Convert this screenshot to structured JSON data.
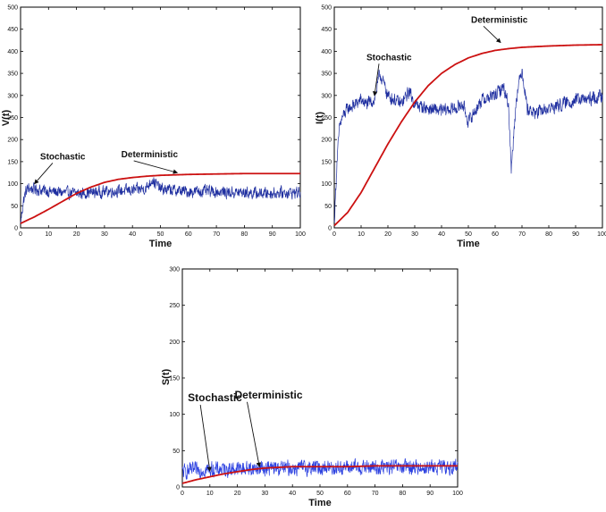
{
  "chart_data": [
    {
      "type": "line",
      "xlabel": "Time",
      "ylabel": "V(t)",
      "xlim": [
        0,
        100
      ],
      "ylim": [
        0,
        500
      ],
      "xticks": [
        0,
        10,
        20,
        30,
        40,
        50,
        60,
        70,
        80,
        90,
        100
      ],
      "yticks": [
        0,
        50,
        100,
        150,
        200,
        250,
        300,
        350,
        400,
        450,
        500
      ],
      "grid": false,
      "series": [
        {
          "name": "Stochastic",
          "color": "#1f2fa0",
          "style": "noisy",
          "x": [
            0,
            1,
            2,
            3,
            5,
            8,
            10,
            15,
            20,
            25,
            30,
            35,
            40,
            45,
            47,
            50,
            55,
            60,
            65,
            70,
            75,
            80,
            85,
            90,
            95,
            100
          ],
          "y": [
            10,
            60,
            85,
            90,
            88,
            85,
            83,
            80,
            78,
            80,
            82,
            84,
            85,
            90,
            110,
            88,
            85,
            82,
            83,
            82,
            80,
            80,
            78,
            79,
            80,
            80
          ],
          "noise_amplitude": 18
        },
        {
          "name": "Deterministic",
          "color": "#cc1111",
          "style": "smooth",
          "x": [
            0,
            5,
            10,
            15,
            20,
            25,
            30,
            35,
            40,
            45,
            50,
            55,
            60,
            70,
            80,
            90,
            100
          ],
          "y": [
            10,
            25,
            42,
            60,
            78,
            92,
            103,
            110,
            114,
            117,
            119,
            120,
            121,
            122,
            123,
            123,
            123
          ]
        }
      ],
      "annotations": [
        {
          "text": "Stochastic",
          "x": 7,
          "y": 155,
          "arrow_to": [
            5,
            100
          ]
        },
        {
          "text": "Deterministic",
          "x": 36,
          "y": 160,
          "arrow_to": [
            56,
            125
          ]
        }
      ]
    },
    {
      "type": "line",
      "xlabel": "Time",
      "ylabel": "I(t)",
      "xlim": [
        0,
        100
      ],
      "ylim": [
        0,
        500
      ],
      "xticks": [
        0,
        10,
        20,
        30,
        40,
        50,
        60,
        70,
        80,
        90,
        100
      ],
      "yticks": [
        0,
        50,
        100,
        150,
        200,
        250,
        300,
        350,
        400,
        450,
        500
      ],
      "grid": false,
      "series": [
        {
          "name": "Stochastic",
          "color": "#1f2fa0",
          "style": "noisy",
          "x": [
            0,
            1,
            2,
            3,
            5,
            8,
            10,
            12,
            15,
            17,
            20,
            25,
            28,
            30,
            35,
            40,
            45,
            48,
            50,
            55,
            60,
            63,
            65,
            66,
            67,
            68,
            70,
            72,
            75,
            80,
            85,
            90,
            95,
            100
          ],
          "y": [
            10,
            150,
            230,
            250,
            270,
            280,
            290,
            280,
            290,
            350,
            300,
            280,
            310,
            280,
            270,
            265,
            270,
            280,
            240,
            290,
            300,
            320,
            280,
            130,
            220,
            300,
            360,
            270,
            260,
            270,
            280,
            290,
            290,
            300
          ],
          "noise_amplitude": 20
        },
        {
          "name": "Deterministic",
          "color": "#cc1111",
          "style": "smooth",
          "x": [
            0,
            5,
            10,
            15,
            20,
            25,
            30,
            35,
            40,
            45,
            50,
            55,
            60,
            65,
            70,
            80,
            90,
            100
          ],
          "y": [
            5,
            35,
            80,
            135,
            190,
            240,
            285,
            322,
            350,
            370,
            385,
            395,
            402,
            406,
            409,
            412,
            414,
            415
          ]
        }
      ],
      "annotations": [
        {
          "text": "Stochastic",
          "x": 12,
          "y": 380,
          "arrow_to": [
            15,
            300
          ]
        },
        {
          "text": "Deterministic",
          "x": 51,
          "y": 465,
          "arrow_to": [
            62,
            420
          ]
        }
      ]
    },
    {
      "type": "line",
      "xlabel": "Time",
      "ylabel": "S(t)",
      "xlim": [
        0,
        100
      ],
      "ylim": [
        0,
        300
      ],
      "xticks": [
        0,
        10,
        20,
        30,
        40,
        50,
        60,
        70,
        80,
        90,
        100
      ],
      "yticks": [
        0,
        50,
        100,
        150,
        200,
        250,
        300
      ],
      "grid": false,
      "series": [
        {
          "name": "Stochastic",
          "color": "#2a3fe0",
          "style": "noisy",
          "x": [
            0,
            2,
            5,
            10,
            20,
            30,
            40,
            50,
            60,
            70,
            80,
            90,
            100
          ],
          "y": [
            20,
            22,
            23,
            24,
            25,
            26,
            26,
            27,
            27,
            27,
            27,
            27,
            27
          ],
          "noise_amplitude": 14
        },
        {
          "name": "Deterministic",
          "color": "#cc1111",
          "style": "smooth",
          "x": [
            0,
            5,
            10,
            15,
            20,
            25,
            30,
            35,
            40,
            50,
            60,
            70,
            80,
            90,
            100
          ],
          "y": [
            5,
            10,
            14,
            18,
            21,
            24,
            26,
            27,
            28,
            28,
            28,
            29,
            29,
            29,
            29
          ]
        }
      ],
      "annotations": [
        {
          "text": "Stochastic",
          "x": 2,
          "y": 118,
          "arrow_to": [
            10,
            22
          ]
        },
        {
          "text": "Deterministic",
          "x": 19,
          "y": 122,
          "arrow_to": [
            28,
            28
          ]
        }
      ]
    }
  ]
}
